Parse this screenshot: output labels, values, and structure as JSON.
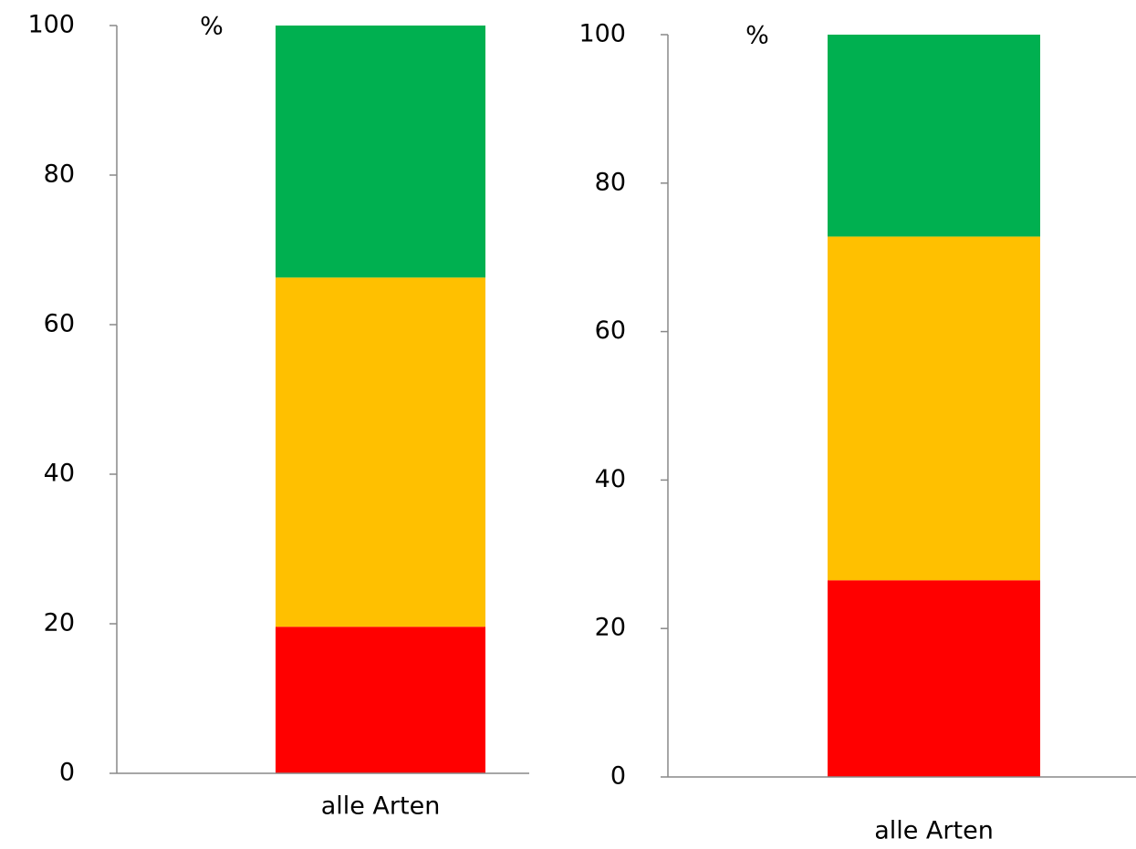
{
  "chart_data": [
    {
      "type": "bar",
      "stacked": true,
      "y_label": "%",
      "categories": [
        "alle Arten"
      ],
      "series": [
        {
          "color": "#ff0000",
          "values": [
            19.6
          ]
        },
        {
          "color": "#ffc000",
          "values": [
            46.7
          ]
        },
        {
          "color": "#00b050",
          "values": [
            33.7
          ]
        }
      ],
      "ylim": [
        0,
        100
      ],
      "yticks": [
        0,
        20,
        40,
        60,
        80,
        100
      ]
    },
    {
      "type": "bar",
      "stacked": true,
      "y_label": "%",
      "categories": [
        "alle Arten"
      ],
      "series": [
        {
          "color": "#ff0000",
          "values": [
            26.5
          ]
        },
        {
          "color": "#ffc000",
          "values": [
            46.3
          ]
        },
        {
          "color": "#00b050",
          "values": [
            27.2
          ]
        }
      ],
      "ylim": [
        0,
        100
      ],
      "yticks": [
        0,
        20,
        40,
        60,
        80,
        100
      ]
    }
  ]
}
